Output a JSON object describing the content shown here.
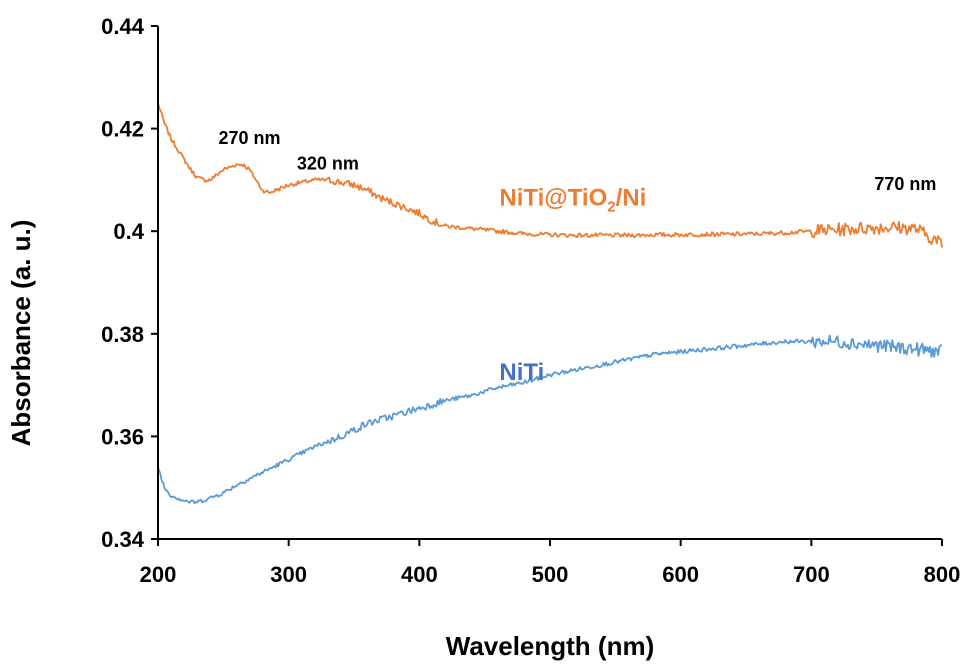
{
  "chart_data": {
    "type": "line",
    "title": "",
    "xlabel": "Wavelength (nm)",
    "ylabel": "Absorbance (a. u.)",
    "xlim": [
      200,
      800
    ],
    "ylim": [
      0.34,
      0.44
    ],
    "x_ticks": [
      "200",
      "300",
      "400",
      "500",
      "600",
      "700",
      "800"
    ],
    "y_ticks": [
      "0.34",
      "0.36",
      "0.38",
      "0.4",
      "0.42",
      "0.44"
    ],
    "grid": false,
    "series": [
      {
        "name": "NiTi@TiO2/Ni",
        "color": "#ED7D31",
        "x": [
          200,
          205,
          210,
          215,
          220,
          225,
          230,
          235,
          240,
          245,
          250,
          255,
          260,
          265,
          270,
          275,
          280,
          285,
          290,
          295,
          300,
          310,
          320,
          330,
          340,
          350,
          360,
          370,
          380,
          390,
          400,
          410,
          420,
          440,
          460,
          480,
          500,
          520,
          540,
          560,
          580,
          600,
          620,
          640,
          660,
          680,
          700,
          720,
          740,
          760,
          780,
          790,
          800
        ],
        "y": [
          0.425,
          0.421,
          0.418,
          0.416,
          0.414,
          0.412,
          0.4105,
          0.41,
          0.41,
          0.411,
          0.412,
          0.4125,
          0.413,
          0.413,
          0.412,
          0.41,
          0.408,
          0.4075,
          0.408,
          0.4085,
          0.409,
          0.4095,
          0.41,
          0.41,
          0.4095,
          0.409,
          0.408,
          0.4065,
          0.4055,
          0.4045,
          0.4035,
          0.402,
          0.401,
          0.4005,
          0.4,
          0.3995,
          0.3993,
          0.3992,
          0.3992,
          0.3992,
          0.3993,
          0.3993,
          0.3994,
          0.3994,
          0.3995,
          0.3997,
          0.4,
          0.4003,
          0.4006,
          0.4008,
          0.4005,
          0.399,
          0.3975
        ]
      },
      {
        "name": "NiTi",
        "color": "#5B9BD5",
        "x": [
          200,
          205,
          210,
          215,
          220,
          225,
          230,
          240,
          250,
          260,
          280,
          300,
          320,
          340,
          360,
          380,
          400,
          420,
          440,
          460,
          480,
          500,
          520,
          540,
          560,
          580,
          600,
          620,
          640,
          660,
          680,
          700,
          720,
          740,
          760,
          780,
          800
        ],
        "y": [
          0.354,
          0.35,
          0.3485,
          0.348,
          0.3475,
          0.3472,
          0.3472,
          0.348,
          0.349,
          0.3505,
          0.353,
          0.3555,
          0.358,
          0.36,
          0.3625,
          0.364,
          0.3655,
          0.367,
          0.368,
          0.3695,
          0.3705,
          0.372,
          0.373,
          0.374,
          0.375,
          0.376,
          0.3765,
          0.377,
          0.3775,
          0.378,
          0.3785,
          0.3785,
          0.3785,
          0.378,
          0.3775,
          0.377,
          0.3765
        ]
      }
    ],
    "series_labels": [
      {
        "text": "NiTi@TiO",
        "sub": "2",
        "rest": "/Ni",
        "x": 410,
        "y": 0.405,
        "color": "#ED7D31"
      },
      {
        "text": "NiTi",
        "sub": "",
        "rest": "",
        "x": 410,
        "y": 0.371,
        "color": "#4472C4"
      }
    ],
    "annotations": [
      {
        "text": "270 nm",
        "x": 270,
        "y": 0.417
      },
      {
        "text": "320 nm",
        "x": 330,
        "y": 0.412
      },
      {
        "text": "770 nm",
        "x": 772,
        "y": 0.408
      }
    ]
  }
}
